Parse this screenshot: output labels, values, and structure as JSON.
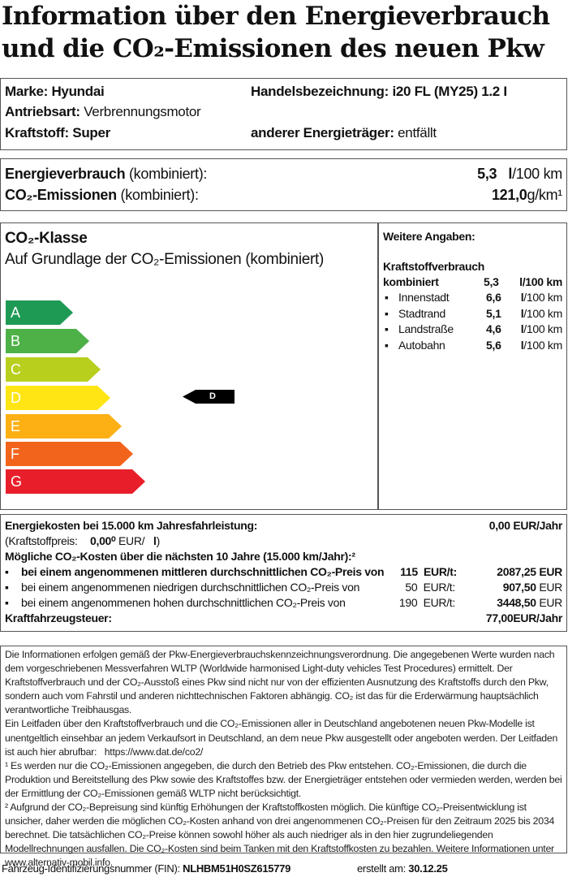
{
  "title": {
    "line1": "Information über den Energieverbrauch",
    "line2": "und die CO₂-Emissionen des neuen Pkw"
  },
  "vehicle": {
    "marke_label": "Marke:",
    "marke": "Hyundai",
    "handel_label": "Handelsbezeichnung:",
    "handel": "i20 FL (MY25) 1.2 I",
    "antrieb_label": "Antriebsart:",
    "antrieb": "Verbrennungsmotor",
    "kraftstoff_label": "Kraftstoff:",
    "kraftstoff": "Super",
    "anderer_label": "anderer Energieträger:",
    "anderer": "entfällt"
  },
  "consumption": {
    "energie_label": "Energieverbrauch",
    "energie_suffix": "(kombiniert):",
    "energie_value": "5,3",
    "energie_unit_l": "l",
    "energie_unit": "/100 km",
    "co2_label": "CO₂-Emissionen",
    "co2_suffix": "(kombiniert):",
    "co2_value": "121,0",
    "co2_unit": "g/km¹"
  },
  "co2_class": {
    "heading": "CO₂-Klasse",
    "subheading": "Auf Grundlage der CO₂-Emissionen (kombiniert)",
    "classes": [
      {
        "label": "A",
        "color": "#1e9a55"
      },
      {
        "label": "B",
        "color": "#4db147"
      },
      {
        "label": "C",
        "color": "#b8cf1e"
      },
      {
        "label": "D",
        "color": "#ffe514"
      },
      {
        "label": "E",
        "color": "#fcb014"
      },
      {
        "label": "F",
        "color": "#f2641c"
      },
      {
        "label": "G",
        "color": "#e81e2a"
      }
    ],
    "current": "D"
  },
  "weitere": {
    "heading": "Weitere Angaben:",
    "sub": "Kraftstoffverbrauch",
    "kombiniert_label": "kombiniert",
    "kombiniert_value": "5,3",
    "kombiniert_unit": "l/100 km",
    "items": [
      {
        "label": "Innenstadt",
        "value": "6,6",
        "unit_l": "l",
        "unit": "/100 km"
      },
      {
        "label": "Stadtrand",
        "value": "5,1",
        "unit_l": "l",
        "unit": "/100 km"
      },
      {
        "label": "Landstraße",
        "value": "4,6",
        "unit_l": "l",
        "unit": "/100 km"
      },
      {
        "label": "Autobahn",
        "value": "5,6",
        "unit_l": "l",
        "unit": "/100 km"
      }
    ],
    "bullet": "▪"
  },
  "costs": {
    "energie_label": "Energiekosten bei 15.000 km Jahresfahrleistung:",
    "energie_value": "0,00 EUR/Jahr",
    "preis_label": "(Kraftstoffpreis:",
    "preis_value": "0,00⁰",
    "preis_unit": "EUR/",
    "preis_l": "l",
    "preis_close": ")",
    "co2_heading": "Mögliche CO₂-Kosten über die nächsten 10 Jahre (15.000 km/Jahr):²",
    "rows": [
      {
        "text": "bei einem angenommenen mittleren durchschnittlichen CO₂-Preis von",
        "price": "115",
        "unit": "EUR/t:",
        "value": "2087,25",
        "cur": "EUR"
      },
      {
        "text": "bei einem angenommenen niedrigen durchschnittlichen CO₂-Preis von",
        "price": "50",
        "unit": "EUR/t:",
        "value": "907,50",
        "cur": "EUR"
      },
      {
        "text": "bei einem angenommenen hohen durchschnittlichen CO₂-Preis von",
        "price": "190",
        "unit": "EUR/t:",
        "value": "3448,50",
        "cur": "EUR"
      }
    ],
    "steuer_label": "Kraftfahrzeugsteuer:",
    "steuer_value": "77,00",
    "steuer_unit": "EUR/Jahr"
  },
  "notes": {
    "p1": "Die Informationen erfolgen gemäß der Pkw-Energieverbrauchskennzeichnungsverordnung. Die angegebenen Werte wurden nach dem vorgeschriebenen Messverfahren WLTP (Worldwide harmonised Light-duty vehicles Test Procedures) ermittelt. Der Kraftstoffverbrauch und der CO₂-Ausstoß eines Pkw sind nicht nur von der effizienten Ausnutzung des Kraftstoffs durch den Pkw, sondern auch vom Fahrstil und anderen nichttechnischen Faktoren abhängig. CO₂ ist das für die Erderwärmung hauptsächlich verantwortliche Treibhausgas.",
    "p2": "Ein Leitfaden über den Kraftstoffverbrauch und die CO₂-Emissionen aller in Deutschland angebotenen neuen Pkw-Modelle ist unentgeltlich einsehbar an jedem Verkaufsort in Deutschland, an dem neue Pkw ausgestellt oder angeboten werden. Der Leitfaden ist auch hier abrufbar:",
    "link": "https://www.dat.de/co2/",
    "fn1": "¹ Es werden nur die CO₂-Emissionen angegeben, die durch den Betrieb des Pkw entstehen. CO₂-Emissionen, die durch die Produktion und Bereitstellung des Pkw sowie des Kraftstoffes bzw. der Energieträger entstehen oder vermieden werden, werden bei der Ermittlung der CO₂-Emissionen gemäß WLTP nicht berücksichtigt.",
    "fn2": "² Aufgrund der CO₂-Bepreisung sind künftig Erhöhungen der Kraftstoffkosten möglich. Die künftige CO₂-Preisentwicklung ist unsicher, daher werden die möglichen CO₂-Kosten anhand von drei angenommenen CO₂-Preisen für den Zeitraum  2025  bis  2034  berechnet. Die tatsächlichen CO₂-Preise können sowohl höher als auch niedriger als in den hier zugrundeliegenden Modellrechnungen ausfallen. Die CO₂-Kosten sind beim Tanken mit den Kraftstoffkosten zu bezahlen. Weitere Informationen unter www.alternativ-mobil.info."
  },
  "footer": {
    "fin_label": "Fahrzeug-Identifizierungsnummer (FIN):",
    "fin": "NLHBM51H0SZ615779",
    "date_label": "erstellt am:",
    "date": "30.12.25"
  }
}
